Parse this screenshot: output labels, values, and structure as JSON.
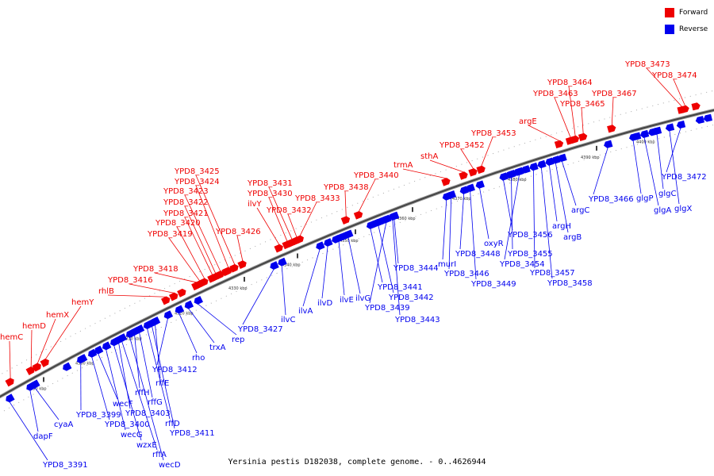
{
  "legend": {
    "forward": {
      "label": "Forward",
      "color": "#ee0000"
    },
    "reverse": {
      "label": "Reverse",
      "color": "#0000ee"
    }
  },
  "caption": "Yersinia pestis D182038, complete genome. - 0..4626944",
  "ticks": [
    "4290 kbp",
    "4300 kbp",
    "4310 kbp",
    "4320 kbp",
    "4330 kbp",
    "4340 kbp",
    "4350 kbp",
    "4360 kbp",
    "4370 kbp",
    "4380 kbp",
    "4390 kbp",
    "4400 kbp"
  ],
  "forward_genes": [
    "hemC",
    "hemD",
    "hemX",
    "hemY",
    "rhlB",
    "YPD8_3416",
    "YPD8_3418",
    "YPD8_3419",
    "YPD8_3420",
    "YPD8_3421",
    "YPD8_3422",
    "YPD8_3423",
    "YPD8_3424",
    "YPD8_3425",
    "YPD8_3426",
    "ilvY",
    "YPD8_3430",
    "YPD8_3431",
    "YPD8_3432",
    "YPD8_3433",
    "YPD8_3438",
    "YPD8_3440",
    "trmA",
    "sthA",
    "YPD8_3452",
    "YPD8_3453",
    "argE",
    "YPD8_3463",
    "YPD8_3464",
    "YPD8_3465",
    "YPD8_3467",
    "YPD8_3473",
    "YPD8_3474"
  ],
  "reverse_genes": [
    "YPD8_3391",
    "dapF",
    "cyaA",
    "YPD8_3399",
    "YPD8_3400",
    "wecF",
    "wecG",
    "wzxE",
    "rffA",
    "wecD",
    "rffH",
    "rffG",
    "YPD8_3403",
    "rffD",
    "YPD8_3411",
    "rffE",
    "YPD8_3412",
    "rho",
    "trxA",
    "rep",
    "YPD8_3427",
    "ilvC",
    "ilvA",
    "ilvD",
    "ilvE",
    "ilvG",
    "YPD8_3441",
    "YPD8_3442",
    "YPD8_3439",
    "YPD8_3443",
    "YPD8_3444",
    "murI",
    "YPD8_3446",
    "YPD8_3448",
    "YPD8_3449",
    "oxyR",
    "YPD8_3456",
    "YPD8_3455",
    "YPD8_3454",
    "YPD8_3457",
    "YPD8_3458",
    "argH",
    "argB",
    "argC",
    "YPD8_3466",
    "glgP",
    "glgA",
    "glgC",
    "glgX",
    "YPD8_3472"
  ]
}
